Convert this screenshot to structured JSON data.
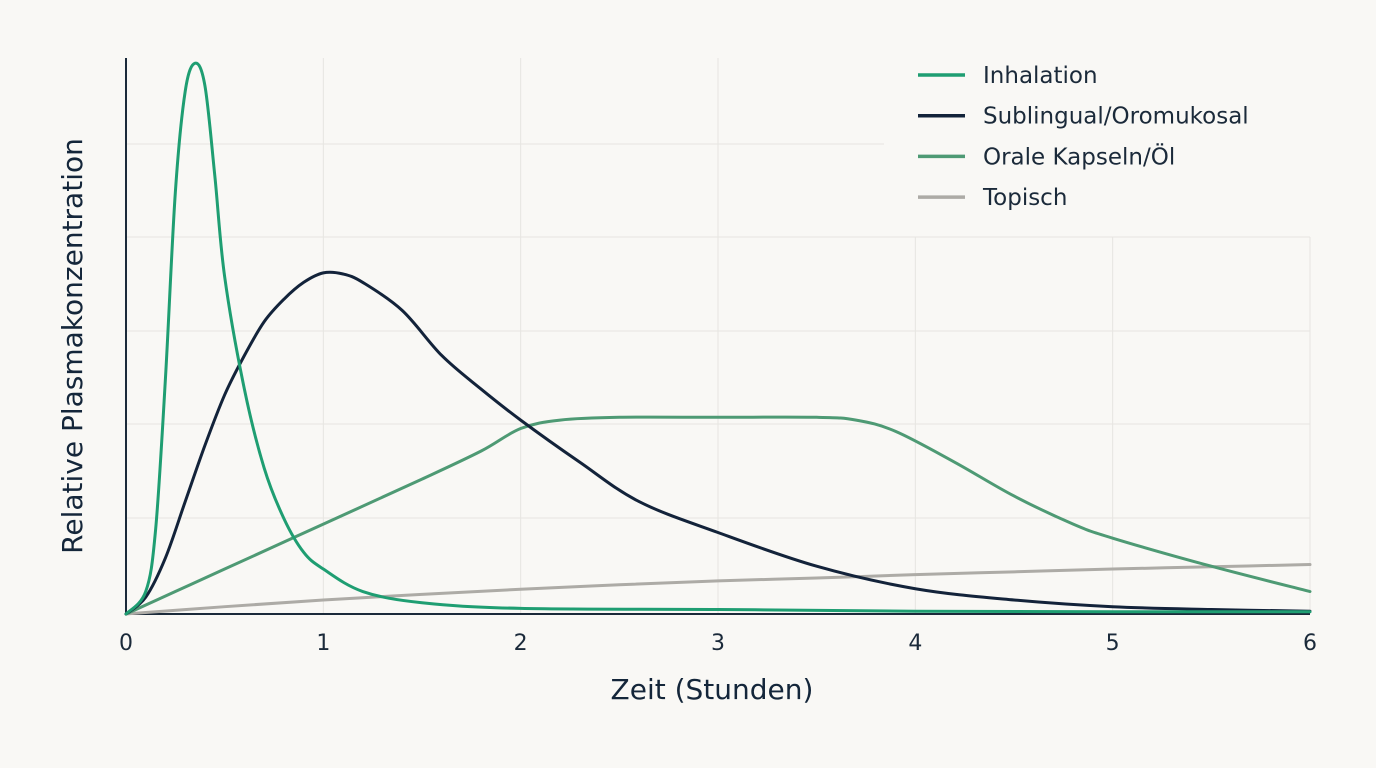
{
  "chart_data": {
    "type": "line",
    "title": "",
    "xlabel": "Zeit (Stunden)",
    "ylabel": "Relative Plasmakonzentration",
    "xlim": [
      0,
      6
    ],
    "ylim": [
      0,
      1.0
    ],
    "x_ticks": [
      "0",
      "1",
      "2",
      "3",
      "4",
      "5",
      "6"
    ],
    "grid": true,
    "legend_position": "top-right",
    "series": [
      {
        "name": "Inhalation",
        "color": "#1f9e72",
        "points": [
          [
            0,
            0
          ],
          [
            0.1,
            0.04
          ],
          [
            0.15,
            0.15
          ],
          [
            0.2,
            0.42
          ],
          [
            0.25,
            0.75
          ],
          [
            0.3,
            0.93
          ],
          [
            0.35,
            0.98
          ],
          [
            0.4,
            0.94
          ],
          [
            0.45,
            0.78
          ],
          [
            0.5,
            0.6
          ],
          [
            0.6,
            0.4
          ],
          [
            0.7,
            0.26
          ],
          [
            0.8,
            0.17
          ],
          [
            0.9,
            0.11
          ],
          [
            1.0,
            0.08
          ],
          [
            1.2,
            0.04
          ],
          [
            1.5,
            0.02
          ],
          [
            2.0,
            0.01
          ],
          [
            3.0,
            0.008
          ],
          [
            4.0,
            0.005
          ],
          [
            5.0,
            0.004
          ],
          [
            6.0,
            0.004
          ]
        ]
      },
      {
        "name": "Sublingual/Oromukosal",
        "color": "#13233a",
        "points": [
          [
            0,
            0
          ],
          [
            0.1,
            0.03
          ],
          [
            0.2,
            0.1
          ],
          [
            0.3,
            0.2
          ],
          [
            0.4,
            0.3
          ],
          [
            0.5,
            0.39
          ],
          [
            0.6,
            0.46
          ],
          [
            0.7,
            0.52
          ],
          [
            0.8,
            0.56
          ],
          [
            0.9,
            0.59
          ],
          [
            1.0,
            0.607
          ],
          [
            1.1,
            0.605
          ],
          [
            1.2,
            0.59
          ],
          [
            1.4,
            0.54
          ],
          [
            1.6,
            0.46
          ],
          [
            1.8,
            0.4
          ],
          [
            2.0,
            0.345
          ],
          [
            2.3,
            0.27
          ],
          [
            2.6,
            0.2
          ],
          [
            3.0,
            0.145
          ],
          [
            3.5,
            0.085
          ],
          [
            4.0,
            0.045
          ],
          [
            4.5,
            0.025
          ],
          [
            5.0,
            0.013
          ],
          [
            5.5,
            0.008
          ],
          [
            6.0,
            0.005
          ]
        ]
      },
      {
        "name": "Orale Kapseln/Öl",
        "color": "#4e9a74",
        "points": [
          [
            0,
            0
          ],
          [
            0.25,
            0.04
          ],
          [
            0.5,
            0.08
          ],
          [
            1.0,
            0.16
          ],
          [
            1.5,
            0.24
          ],
          [
            1.8,
            0.29
          ],
          [
            2.0,
            0.33
          ],
          [
            2.2,
            0.345
          ],
          [
            2.5,
            0.35
          ],
          [
            3.0,
            0.35
          ],
          [
            3.5,
            0.35
          ],
          [
            3.7,
            0.345
          ],
          [
            3.9,
            0.325
          ],
          [
            4.2,
            0.27
          ],
          [
            4.5,
            0.21
          ],
          [
            4.8,
            0.16
          ],
          [
            5.0,
            0.135
          ],
          [
            5.5,
            0.085
          ],
          [
            6.0,
            0.04
          ]
        ]
      },
      {
        "name": "Topisch",
        "color": "#adaba6",
        "points": [
          [
            0,
            0
          ],
          [
            0.5,
            0.013
          ],
          [
            1.0,
            0.025
          ],
          [
            1.5,
            0.035
          ],
          [
            2.0,
            0.044
          ],
          [
            2.5,
            0.052
          ],
          [
            3.0,
            0.059
          ],
          [
            3.5,
            0.064
          ],
          [
            4.0,
            0.07
          ],
          [
            4.5,
            0.075
          ],
          [
            5.0,
            0.08
          ],
          [
            5.5,
            0.084
          ],
          [
            6.0,
            0.088
          ]
        ]
      }
    ]
  }
}
